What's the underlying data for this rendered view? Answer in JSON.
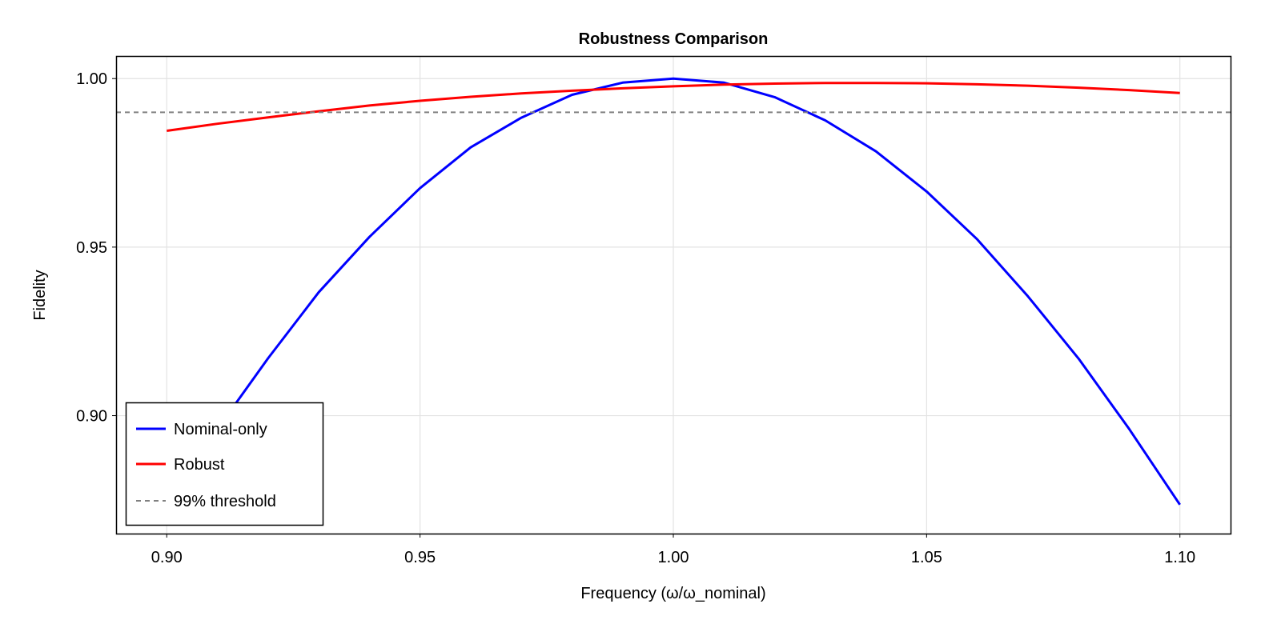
{
  "chart_data": {
    "type": "line",
    "title": "Robustness Comparison",
    "xlabel": "Frequency (ω/ω_nominal)",
    "ylabel": "Fidelity",
    "xlim": [
      0.89,
      1.11
    ],
    "ylim": [
      0.865,
      1.0067
    ],
    "xticks": [
      0.9,
      0.95,
      1.0,
      1.05,
      1.1
    ],
    "xtick_labels": [
      "0.90",
      "0.95",
      "1.00",
      "1.05",
      "1.10"
    ],
    "yticks": [
      0.9,
      0.95,
      1.0
    ],
    "ytick_labels": [
      "0.90",
      "0.95",
      "1.00"
    ],
    "grid": true,
    "legend_position": "bottom-left",
    "x": [
      0.9,
      0.91,
      0.92,
      0.93,
      0.94,
      0.95,
      0.96,
      0.97,
      0.98,
      0.99,
      1.0,
      1.01,
      1.02,
      1.03,
      1.04,
      1.05,
      1.06,
      1.07,
      1.08,
      1.09,
      1.1
    ],
    "series": [
      {
        "name": "Nominal-only",
        "color": "#0000ff",
        "style": "solid",
        "values": [
          0.874,
          0.896,
          0.917,
          0.9366,
          0.953,
          0.9675,
          0.9796,
          0.9884,
          0.9952,
          0.9988,
          1.0,
          0.9988,
          0.9945,
          0.9876,
          0.9784,
          0.9665,
          0.9523,
          0.9354,
          0.9169,
          0.896,
          0.8736
        ]
      },
      {
        "name": "Robust",
        "color": "#ff0000",
        "style": "solid",
        "values": [
          0.9845,
          0.9866,
          0.9885,
          0.9903,
          0.992,
          0.9934,
          0.9946,
          0.9956,
          0.9964,
          0.9971,
          0.9977,
          0.9982,
          0.9985,
          0.9987,
          0.9987,
          0.9986,
          0.9983,
          0.9979,
          0.9973,
          0.9966,
          0.9957
        ]
      },
      {
        "name": "99% threshold",
        "color": "#808080",
        "style": "dashed",
        "hline": 0.99
      }
    ]
  }
}
